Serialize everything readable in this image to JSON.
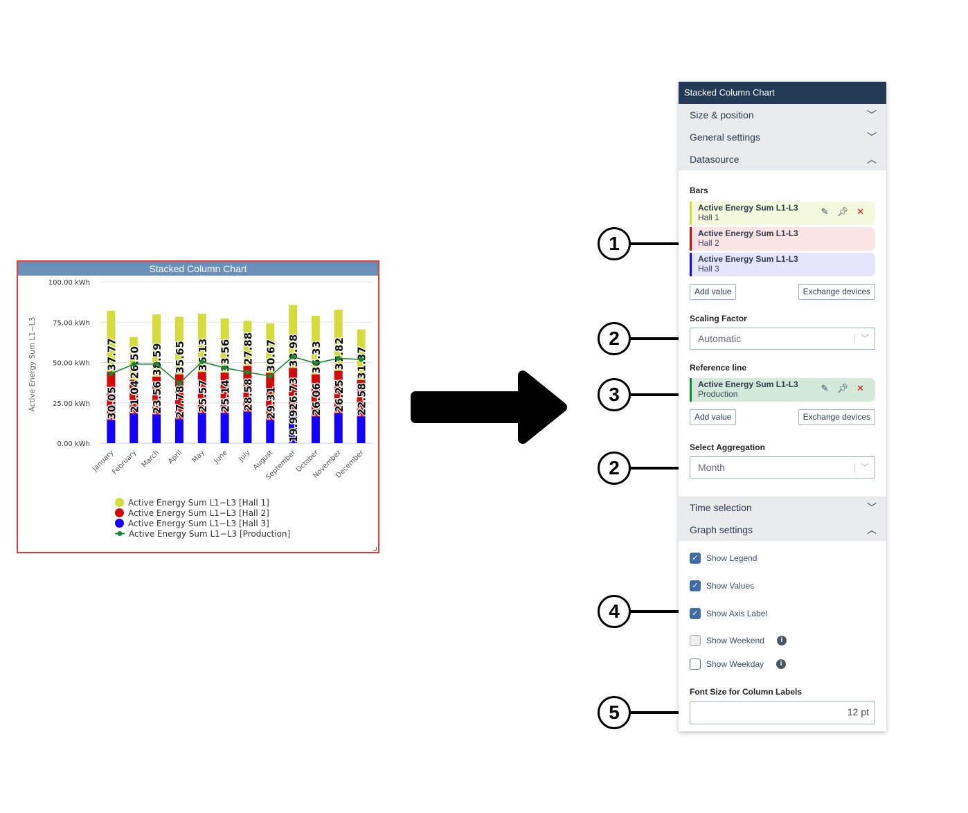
{
  "widget": {
    "title": "Stacked Column Chart"
  },
  "chart_data": {
    "type": "bar",
    "stacked": true,
    "title": "Stacked Column Chart",
    "ylabel": "Active Energy Sum L1−L3",
    "ylim": [
      0,
      100
    ],
    "yticks": [
      "0.00 kWh",
      "25.00 kWh",
      "50.00 kWh",
      "75.00 kWh",
      "100.00 kWh"
    ],
    "ytick_values": [
      0,
      25,
      50,
      75,
      100
    ],
    "grid": true,
    "legend": "bottom",
    "categories": [
      "January",
      "February",
      "March",
      "April",
      "May",
      "June",
      "July",
      "August",
      "September",
      "October",
      "November",
      "December"
    ],
    "series": [
      {
        "name": "Active Energy Sum L1−L3 [Hall 3]",
        "color": "#1400ff",
        "values": [
          14.3,
          18.3,
          17.7,
          14.9,
          18.6,
          18.6,
          19.4,
          14.3,
          19.99,
          16.6,
          18.6,
          16.6
        ],
        "labels": [
          "",
          "",
          "",
          "",
          "",
          "",
          "",
          "",
          "19.99",
          "",
          "",
          ""
        ]
      },
      {
        "name": "Active Energy Sum L1−L3 [Hall 2]",
        "color": "#d40a0a",
        "values": [
          30.05,
          21.04,
          23.56,
          27.78,
          25.57,
          25.14,
          28.58,
          29.31,
          26.73,
          26.06,
          26.25,
          22.58
        ],
        "labels": [
          "30.05",
          "21.04",
          "23.56",
          "27.78",
          "25.57",
          "25.14",
          "28.58",
          "29.31",
          "26.73",
          "26.06",
          "26.25",
          "22.58"
        ]
      },
      {
        "name": "Active Energy Sum L1−L3 [Hall 1]",
        "color": "#d4dc3c",
        "values": [
          37.77,
          26.5,
          38.59,
          35.65,
          36.13,
          33.56,
          27.88,
          30.67,
          38.98,
          36.33,
          37.82,
          31.37
        ],
        "labels": [
          "37.77",
          "26.50",
          "38.59",
          "35.65",
          "36.13",
          "33.56",
          "27.88",
          "30.67",
          "38.98",
          "36.33",
          "37.82",
          "31.37"
        ]
      }
    ],
    "line": {
      "name": "Active Energy Sum L1−L3 [Production]",
      "type": "line",
      "color": "#138a2e",
      "values": [
        43.1,
        49,
        49,
        37.1,
        50.4,
        46.7,
        44,
        41.6,
        53.6,
        49.6,
        52.6,
        51.9
      ]
    },
    "legend_entries": [
      "Active Energy Sum L1−L3 [Hall 1]",
      "Active Energy Sum L1−L3 [Hall 2]",
      "Active Energy Sum L1−L3 [Hall 3]",
      "Active Energy Sum L1−L3 [Production]"
    ]
  },
  "panel": {
    "title": "Stacked Column Chart",
    "sections": [
      {
        "label": "Size & position",
        "open": false
      },
      {
        "label": "General settings",
        "open": false
      },
      {
        "label": "Datasource",
        "open": true
      },
      {
        "label": "Time selection",
        "open": false
      },
      {
        "label": "Graph settings",
        "open": true
      }
    ],
    "bars": {
      "label": "Bars",
      "items": [
        {
          "title": "Active Energy Sum L1-L3",
          "sub": "Hall 1",
          "color": "#d4dc3c",
          "bg": "#f4f8dc"
        },
        {
          "title": "Active Energy Sum L1-L3",
          "sub": "Hall 2",
          "color": "#d40a0a",
          "bg": "#fae4e4"
        },
        {
          "title": "Active Energy Sum L1-L3",
          "sub": "Hall 3",
          "color": "#1400ff",
          "bg": "#e6e4fb"
        }
      ],
      "add": "Add value",
      "exchange": "Exchange devices"
    },
    "scaling": {
      "label": "Scaling Factor",
      "value": "Automatic"
    },
    "reference": {
      "label": "Reference line",
      "item": {
        "title": "Active Energy Sum L1-L3",
        "sub": "Production",
        "color": "#138a2e",
        "bg": "#d4e9d9"
      },
      "add": "Add value",
      "exchange": "Exchange devices"
    },
    "aggregation": {
      "label": "Select Aggregation",
      "value": "Month"
    },
    "checkboxes": [
      {
        "label": "Show Legend",
        "checked": true
      },
      {
        "label": "Show Values",
        "checked": true
      },
      {
        "label": "Show Axis Label",
        "checked": true
      },
      {
        "label": "Show Weekend",
        "checked": false,
        "disabled": true,
        "info": true
      },
      {
        "label": "Show Weekday",
        "checked": false,
        "info": true
      }
    ],
    "font_size": {
      "label": "Font Size for Column Labels",
      "value": "12 pt"
    }
  },
  "callouts": [
    "1",
    "2",
    "3",
    "2",
    "4",
    "5"
  ]
}
